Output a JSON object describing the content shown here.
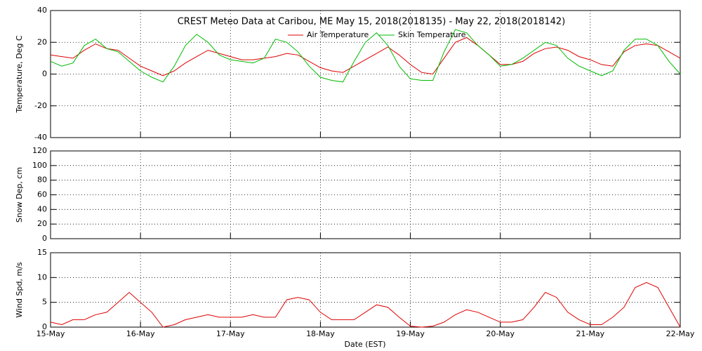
{
  "chart_data": [
    {
      "type": "line",
      "title": "CREST Meteo Data at Caribou, ME   May 15, 2018(2018135) - May 22, 2018(2018142)",
      "y_label": "Temperature, Deg C",
      "xlim": [
        0,
        7
      ],
      "xticks": [
        0,
        1,
        2,
        3,
        4,
        5,
        6,
        7
      ],
      "ylim": [
        -40,
        40
      ],
      "yticks": [
        -40,
        -20,
        0,
        20,
        40
      ],
      "grid": true,
      "x": [
        0,
        0.125,
        0.25,
        0.375,
        0.5,
        0.625,
        0.75,
        0.875,
        1,
        1.125,
        1.25,
        1.375,
        1.5,
        1.625,
        1.75,
        1.875,
        2,
        2.125,
        2.25,
        2.375,
        2.5,
        2.625,
        2.75,
        2.875,
        3,
        3.125,
        3.25,
        3.375,
        3.5,
        3.625,
        3.75,
        3.875,
        4,
        4.125,
        4.25,
        4.375,
        4.5,
        4.625,
        4.75,
        4.875,
        5,
        5.125,
        5.25,
        5.375,
        5.5,
        5.625,
        5.75,
        5.875,
        6,
        6.125,
        6.25,
        6.375,
        6.5,
        6.625,
        6.75,
        6.875,
        7
      ],
      "series": [
        {
          "name": "Air Temperature",
          "color": "#dd0000",
          "values": [
            12,
            11,
            10,
            15,
            19,
            16,
            15,
            10,
            5,
            2,
            -1,
            2,
            7,
            11,
            15,
            13,
            11,
            9,
            9,
            10,
            11,
            13,
            12,
            8,
            4,
            2,
            1,
            5,
            9,
            13,
            17,
            12,
            6,
            1,
            0,
            10,
            20,
            23,
            18,
            12,
            6,
            6,
            8,
            13,
            16,
            17,
            15,
            11,
            9,
            6,
            5,
            14,
            18,
            19,
            18,
            14,
            10
          ]
        },
        {
          "name": "Skin Temperature",
          "color": "#00bb00",
          "values": [
            8,
            5,
            7,
            18,
            22,
            16,
            14,
            8,
            2,
            -2,
            -5,
            5,
            18,
            25,
            20,
            12,
            9,
            8,
            7,
            10,
            22,
            20,
            14,
            5,
            -2,
            -4,
            -5,
            8,
            20,
            26,
            18,
            5,
            -3,
            -4,
            -4,
            14,
            28,
            26,
            18,
            12,
            5,
            6,
            10,
            15,
            20,
            18,
            10,
            5,
            2,
            -1,
            2,
            15,
            22,
            22,
            18,
            8,
            0
          ]
        }
      ]
    },
    {
      "type": "line",
      "y_label": "Snow Dep, cm",
      "xlim": [
        0,
        7
      ],
      "xticks": [
        0,
        1,
        2,
        3,
        4,
        5,
        6,
        7
      ],
      "ylim": [
        0,
        120
      ],
      "yticks": [
        0,
        20,
        40,
        60,
        80,
        100,
        120
      ],
      "grid": true,
      "series": []
    },
    {
      "type": "line",
      "y_label": "Wind Spd, m/s",
      "x_label": "Date (EST)",
      "xlim": [
        0,
        7
      ],
      "xticks": [
        {
          "value": 0,
          "label": "15-May"
        },
        {
          "value": 1,
          "label": "16-May"
        },
        {
          "value": 2,
          "label": "17-May"
        },
        {
          "value": 3,
          "label": "18-May"
        },
        {
          "value": 4,
          "label": "19-May"
        },
        {
          "value": 5,
          "label": "20-May"
        },
        {
          "value": 6,
          "label": "21-May"
        },
        {
          "value": 7,
          "label": "22-May"
        }
      ],
      "ylim": [
        0,
        15
      ],
      "yticks": [
        0,
        5,
        10,
        15
      ],
      "grid": true,
      "x": [
        0,
        0.125,
        0.25,
        0.375,
        0.5,
        0.625,
        0.75,
        0.875,
        1,
        1.125,
        1.25,
        1.375,
        1.5,
        1.625,
        1.75,
        1.875,
        2,
        2.125,
        2.25,
        2.375,
        2.5,
        2.625,
        2.75,
        2.875,
        3,
        3.125,
        3.25,
        3.375,
        3.5,
        3.625,
        3.75,
        3.875,
        4,
        4.125,
        4.25,
        4.375,
        4.5,
        4.625,
        4.75,
        4.875,
        5,
        5.125,
        5.25,
        5.375,
        5.5,
        5.625,
        5.75,
        5.875,
        6,
        6.125,
        6.25,
        6.375,
        6.5,
        6.625,
        6.75,
        6.875,
        7
      ],
      "series": [
        {
          "color": "#dd0000",
          "values": [
            1,
            0.5,
            1.5,
            1.5,
            2.5,
            3,
            5,
            7,
            5,
            3,
            0,
            0.5,
            1.5,
            2,
            2.5,
            2,
            2,
            2,
            2.5,
            2,
            2,
            5.5,
            6,
            5.5,
            3,
            1.5,
            1.5,
            1.5,
            3,
            4.5,
            4,
            2,
            0.2,
            0,
            0.2,
            1,
            2.5,
            3.5,
            3,
            2,
            1,
            1,
            1.5,
            4,
            7,
            6,
            3,
            1.5,
            0.5,
            0.5,
            2,
            4,
            8,
            9,
            8,
            4,
            0
          ]
        }
      ]
    }
  ]
}
